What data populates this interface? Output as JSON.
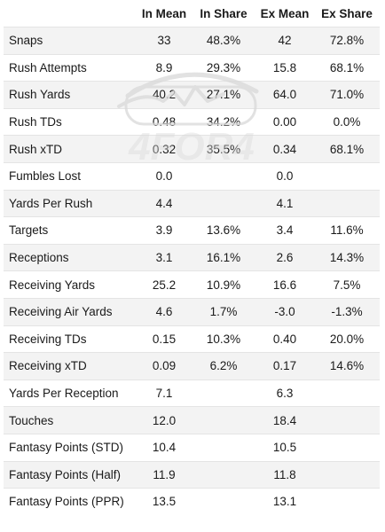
{
  "table": {
    "headers": [
      "",
      "In Mean",
      "In Share",
      "Ex Mean",
      "Ex Share"
    ],
    "rows": [
      {
        "stat": "Snaps",
        "in_mean": "33",
        "in_share": "48.3%",
        "ex_mean": "42",
        "ex_share": "72.8%"
      },
      {
        "stat": "Rush Attempts",
        "in_mean": "8.9",
        "in_share": "29.3%",
        "ex_mean": "15.8",
        "ex_share": "68.1%"
      },
      {
        "stat": "Rush Yards",
        "in_mean": "40.2",
        "in_share": "27.1%",
        "ex_mean": "64.0",
        "ex_share": "71.0%"
      },
      {
        "stat": "Rush TDs",
        "in_mean": "0.48",
        "in_share": "34.2%",
        "ex_mean": "0.00",
        "ex_share": "0.0%"
      },
      {
        "stat": "Rush xTD",
        "in_mean": "0.32",
        "in_share": "35.5%",
        "ex_mean": "0.34",
        "ex_share": "68.1%"
      },
      {
        "stat": "Fumbles Lost",
        "in_mean": "0.0",
        "in_share": "",
        "ex_mean": "0.0",
        "ex_share": ""
      },
      {
        "stat": "Yards Per Rush",
        "in_mean": "4.4",
        "in_share": "",
        "ex_mean": "4.1",
        "ex_share": ""
      },
      {
        "stat": "Targets",
        "in_mean": "3.9",
        "in_share": "13.6%",
        "ex_mean": "3.4",
        "ex_share": "11.6%"
      },
      {
        "stat": "Receptions",
        "in_mean": "3.1",
        "in_share": "16.1%",
        "ex_mean": "2.6",
        "ex_share": "14.3%"
      },
      {
        "stat": "Receiving Yards",
        "in_mean": "25.2",
        "in_share": "10.9%",
        "ex_mean": "16.6",
        "ex_share": "7.5%"
      },
      {
        "stat": "Receiving Air Yards",
        "in_mean": "4.6",
        "in_share": "1.7%",
        "ex_mean": "-3.0",
        "ex_share": "-1.3%"
      },
      {
        "stat": "Receiving TDs",
        "in_mean": "0.15",
        "in_share": "10.3%",
        "ex_mean": "0.40",
        "ex_share": "20.0%"
      },
      {
        "stat": "Receiving xTD",
        "in_mean": "0.09",
        "in_share": "6.2%",
        "ex_mean": "0.17",
        "ex_share": "14.6%"
      },
      {
        "stat": "Yards Per Reception",
        "in_mean": "7.1",
        "in_share": "",
        "ex_mean": "6.3",
        "ex_share": ""
      },
      {
        "stat": "Touches",
        "in_mean": "12.0",
        "in_share": "",
        "ex_mean": "18.4",
        "ex_share": ""
      },
      {
        "stat": "Fantasy Points (STD)",
        "in_mean": "10.4",
        "in_share": "",
        "ex_mean": "10.5",
        "ex_share": ""
      },
      {
        "stat": "Fantasy Points (Half)",
        "in_mean": "11.9",
        "in_share": "",
        "ex_mean": "11.8",
        "ex_share": ""
      },
      {
        "stat": "Fantasy Points (PPR)",
        "in_mean": "13.5",
        "in_share": "",
        "ex_mean": "13.1",
        "ex_share": ""
      }
    ]
  },
  "watermark": {
    "text": "4FOR4",
    "color": "#d9d9d9"
  }
}
